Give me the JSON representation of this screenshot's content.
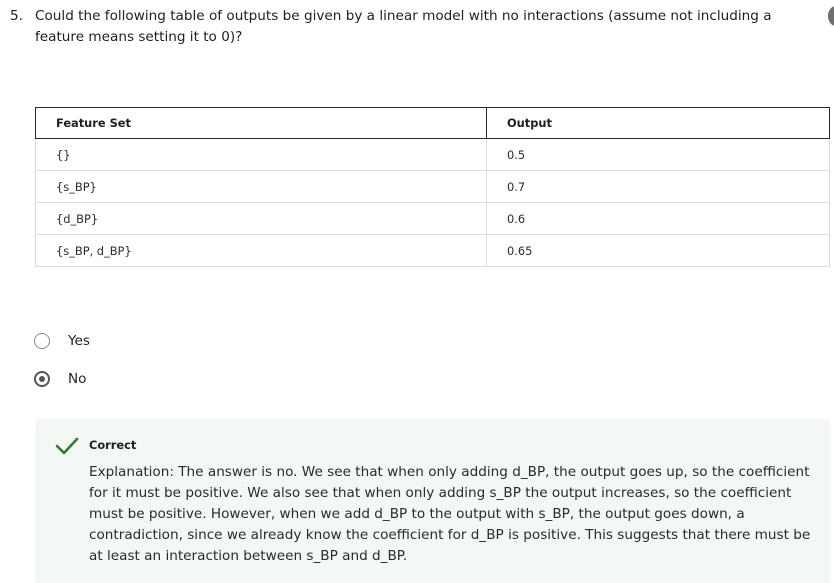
{
  "question": {
    "number": "5.",
    "text": "Could the following table of outputs be given by a linear model with no interactions (assume not including a feature means setting it to 0)?"
  },
  "table": {
    "headers": [
      "Feature Set",
      "Output"
    ],
    "rows": [
      [
        "{}",
        "0.5"
      ],
      [
        "{s_BP}",
        "0.7"
      ],
      [
        "{d_BP}",
        "0.6"
      ],
      [
        "{s_BP, d_BP}",
        "0.65"
      ]
    ]
  },
  "options": [
    {
      "label": "Yes",
      "selected": false
    },
    {
      "label": "No",
      "selected": true
    }
  ],
  "feedback": {
    "status": "Correct",
    "icon": "check-icon",
    "accent_color": "#2e7d32",
    "background_color": "#f3f8f5",
    "explanation": "Explanation: The answer is no. We see that when only adding d_BP, the output goes up, so the coefficient for it must be positive. We also see that when only adding s_BP the output increases, so the coefficient must be positive. However, when we add d_BP to the output with s_BP, the output goes down, a contradiction, since we already know the coefficient for d_BP is positive. This suggests that there must be at least an interaction between s_BP and d_BP."
  }
}
